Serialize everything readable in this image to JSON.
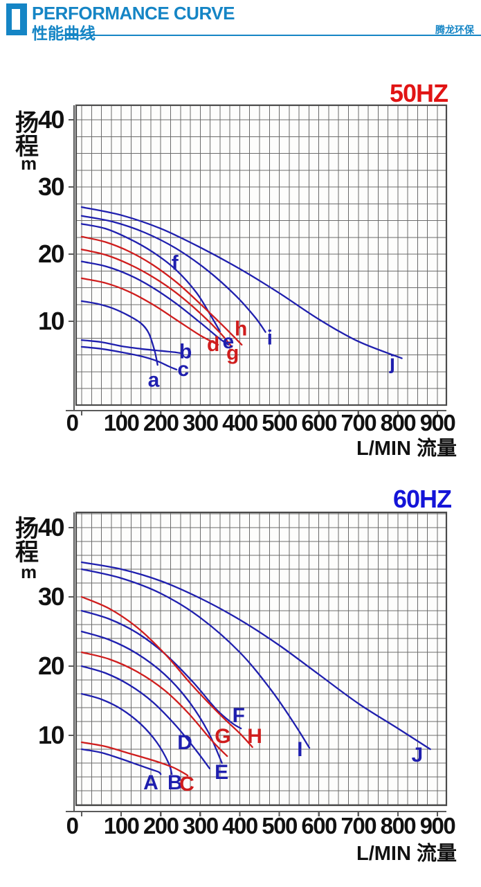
{
  "header": {
    "title_en": "PERFORMANCE CURVE",
    "title_zh": "性能曲线",
    "brand": "腾龙环保"
  },
  "colors": {
    "accent": "#1585c5",
    "blue": "#1f1fae",
    "red": "#cf1d1d",
    "grid": "#6a6a6a",
    "border": "#4a4a4a",
    "axis_line": "#5a5a5a",
    "axis_text": "#111111",
    "title_50hz": "#e11414",
    "title_60hz": "#1414d8",
    "plot_bg": "#fdfdfc"
  },
  "chart_data": [
    {
      "id": "50hz",
      "type": "line",
      "title": "50HZ",
      "title_color": "title_50hz",
      "ylabel": "扬程",
      "ylabel_chars": [
        "扬",
        "程"
      ],
      "ylabel_unit": "m",
      "xlabel": "L/MIN 流量",
      "x_ticks": [
        0,
        100,
        200,
        300,
        400,
        500,
        600,
        700,
        800,
        900
      ],
      "y_ticks": [
        10,
        20,
        30,
        40
      ],
      "xlim": [
        0,
        920
      ],
      "ylim": [
        0,
        42
      ],
      "grid": true,
      "legend_position": "none",
      "series": [
        {
          "name": "a",
          "color": "blue",
          "label_at": [
            182,
            1.3
          ],
          "points": [
            [
              0,
              13
            ],
            [
              40,
              12.6
            ],
            [
              80,
              11.9
            ],
            [
              120,
              10.8
            ],
            [
              150,
              9.7
            ],
            [
              170,
              8.2
            ],
            [
              185,
              5.5
            ],
            [
              192,
              3.5
            ]
          ]
        },
        {
          "name": "b",
          "color": "blue",
          "label_at": [
            263,
            5.5
          ],
          "points": [
            [
              0,
              7.2
            ],
            [
              50,
              6.9
            ],
            [
              100,
              6.3
            ],
            [
              150,
              5.9
            ],
            [
              200,
              5.6
            ],
            [
              235,
              5.4
            ],
            [
              255,
              5.2
            ]
          ]
        },
        {
          "name": "c",
          "color": "blue",
          "label_at": [
            257,
            2.9
          ],
          "points": [
            [
              0,
              6.2
            ],
            [
              50,
              5.9
            ],
            [
              100,
              5.4
            ],
            [
              150,
              4.8
            ],
            [
              190,
              4.1
            ],
            [
              220,
              3.3
            ],
            [
              240,
              2.8
            ]
          ]
        },
        {
          "name": "d",
          "color": "red",
          "label_at": [
            333,
            6.6
          ],
          "points": [
            [
              0,
              16.4
            ],
            [
              60,
              15.7
            ],
            [
              120,
              14.4
            ],
            [
              180,
              12.5
            ],
            [
              240,
              10.2
            ],
            [
              300,
              7.9
            ],
            [
              345,
              6.5
            ]
          ]
        },
        {
          "name": "e",
          "color": "blue",
          "label_at": [
            371,
            7.0
          ],
          "points": [
            [
              0,
              18.9
            ],
            [
              60,
              18.2
            ],
            [
              120,
              16.9
            ],
            [
              180,
              15.0
            ],
            [
              240,
              12.6
            ],
            [
              300,
              9.8
            ],
            [
              345,
              7.6
            ],
            [
              371,
              6.5
            ]
          ]
        },
        {
          "name": "f",
          "color": "blue",
          "label_at": [
            236,
            18.7
          ],
          "points": [
            [
              0,
              24.5
            ],
            [
              60,
              23.8
            ],
            [
              120,
              22.3
            ],
            [
              180,
              20.3
            ],
            [
              236,
              17.8
            ],
            [
              290,
              14.3
            ],
            [
              330,
              10.5
            ],
            [
              350,
              8.5
            ]
          ]
        },
        {
          "name": "g",
          "color": "red",
          "label_at": [
            382,
            5.3
          ],
          "points": [
            [
              0,
              20.7
            ],
            [
              60,
              19.9
            ],
            [
              120,
              18.5
            ],
            [
              180,
              16.6
            ],
            [
              240,
              14.2
            ],
            [
              300,
              11.2
            ],
            [
              350,
              8.3
            ],
            [
              380,
              6.2
            ]
          ]
        },
        {
          "name": "h",
          "color": "red",
          "label_at": [
            403,
            8.9
          ],
          "points": [
            [
              0,
              22.6
            ],
            [
              60,
              21.8
            ],
            [
              120,
              20.4
            ],
            [
              180,
              18.4
            ],
            [
              240,
              15.8
            ],
            [
              300,
              12.6
            ],
            [
              360,
              9.2
            ],
            [
              405,
              6.5
            ]
          ]
        },
        {
          "name": "i",
          "color": "blue",
          "label_at": [
            476,
            7.6
          ],
          "points": [
            [
              0,
              25.7
            ],
            [
              80,
              24.8
            ],
            [
              160,
              23.2
            ],
            [
              240,
              20.8
            ],
            [
              320,
              17.5
            ],
            [
              390,
              13.8
            ],
            [
              440,
              10.5
            ],
            [
              465,
              8.4
            ]
          ]
        },
        {
          "name": "j",
          "color": "blue",
          "label_at": [
            786,
            3.9
          ],
          "points": [
            [
              0,
              27
            ],
            [
              100,
              25.8
            ],
            [
              200,
              23.8
            ],
            [
              300,
              21
            ],
            [
              400,
              17.8
            ],
            [
              500,
              14.2
            ],
            [
              600,
              10.3
            ],
            [
              700,
              7
            ],
            [
              810,
              4.5
            ]
          ]
        }
      ]
    },
    {
      "id": "60hz",
      "type": "line",
      "title": "60HZ",
      "title_color": "title_60hz",
      "ylabel": "扬程",
      "ylabel_chars": [
        "扬",
        "程"
      ],
      "ylabel_unit": "m",
      "xlabel": "L/MIN 流量",
      "x_ticks": [
        0,
        100,
        200,
        300,
        400,
        500,
        600,
        700,
        800,
        900
      ],
      "y_ticks": [
        10,
        20,
        30,
        40
      ],
      "xlim": [
        0,
        920
      ],
      "ylim": [
        0,
        42
      ],
      "grid": true,
      "legend_position": "none",
      "series": [
        {
          "name": "A",
          "color": "blue",
          "label_at": [
            175,
            3.2
          ],
          "points": [
            [
              0,
              8
            ],
            [
              50,
              7.5
            ],
            [
              100,
              6.6
            ],
            [
              140,
              5.8
            ],
            [
              175,
              5.1
            ],
            [
              195,
              4.7
            ],
            [
              200,
              4.4
            ]
          ]
        },
        {
          "name": "B",
          "color": "blue",
          "label_at": [
            236,
            3.2
          ],
          "points": [
            [
              0,
              16
            ],
            [
              50,
              15.2
            ],
            [
              100,
              13.8
            ],
            [
              150,
              11.6
            ],
            [
              190,
              9
            ],
            [
              220,
              6
            ],
            [
              228,
              4.4
            ]
          ]
        },
        {
          "name": "C",
          "color": "red",
          "label_at": [
            266,
            3.0
          ],
          "points": [
            [
              0,
              9
            ],
            [
              60,
              8.4
            ],
            [
              120,
              7.4
            ],
            [
              180,
              6.4
            ],
            [
              230,
              5.4
            ],
            [
              260,
              4.5
            ],
            [
              268,
              4.2
            ]
          ]
        },
        {
          "name": "D",
          "color": "blue",
          "label_at": [
            261,
            9.0
          ],
          "points": [
            [
              0,
              20
            ],
            [
              60,
              19
            ],
            [
              120,
              17.3
            ],
            [
              180,
              14.8
            ],
            [
              240,
              11.3
            ],
            [
              290,
              7.8
            ],
            [
              324,
              5.2
            ]
          ]
        },
        {
          "name": "E",
          "color": "blue",
          "label_at": [
            354,
            4.7
          ],
          "points": [
            [
              0,
              25
            ],
            [
              70,
              23.8
            ],
            [
              140,
              21.8
            ],
            [
              210,
              18.8
            ],
            [
              270,
              15
            ],
            [
              320,
              10.5
            ],
            [
              355,
              6.0
            ]
          ]
        },
        {
          "name": "F",
          "color": "blue",
          "label_at": [
            397,
            12.9
          ],
          "points": [
            [
              0,
              28
            ],
            [
              70,
              26.8
            ],
            [
              140,
              24.8
            ],
            [
              210,
              21.8
            ],
            [
              280,
              17.8
            ],
            [
              340,
              13.8
            ],
            [
              380,
              11.8
            ],
            [
              403,
              11
            ]
          ]
        },
        {
          "name": "G",
          "color": "red",
          "label_at": [
            357,
            9.9
          ],
          "points": [
            [
              0,
              22
            ],
            [
              70,
              21
            ],
            [
              140,
              19.2
            ],
            [
              210,
              16.5
            ],
            [
              270,
              13.2
            ],
            [
              330,
              9.2
            ],
            [
              368,
              7.0
            ]
          ]
        },
        {
          "name": "H",
          "color": "red",
          "label_at": [
            438,
            9.9
          ],
          "points": [
            [
              0,
              30
            ],
            [
              70,
              28.3
            ],
            [
              140,
              25.6
            ],
            [
              210,
              21.8
            ],
            [
              280,
              17.2
            ],
            [
              350,
              13
            ],
            [
              400,
              10.3
            ],
            [
              432,
              8.3
            ]
          ]
        },
        {
          "name": "I",
          "color": "blue",
          "label_at": [
            552,
            8.0
          ],
          "points": [
            [
              0,
              34
            ],
            [
              100,
              32.7
            ],
            [
              200,
              30.5
            ],
            [
              300,
              27
            ],
            [
              400,
              22
            ],
            [
              480,
              16.5
            ],
            [
              540,
              11.5
            ],
            [
              576,
              8.2
            ]
          ]
        },
        {
          "name": "J",
          "color": "blue",
          "label_at": [
            849,
            7.2
          ],
          "points": [
            [
              0,
              35
            ],
            [
              100,
              34
            ],
            [
              200,
              32.3
            ],
            [
              300,
              29.8
            ],
            [
              400,
              26.7
            ],
            [
              500,
              23
            ],
            [
              600,
              18.8
            ],
            [
              700,
              14.6
            ],
            [
              800,
              11
            ],
            [
              882,
              8
            ]
          ]
        }
      ]
    }
  ]
}
